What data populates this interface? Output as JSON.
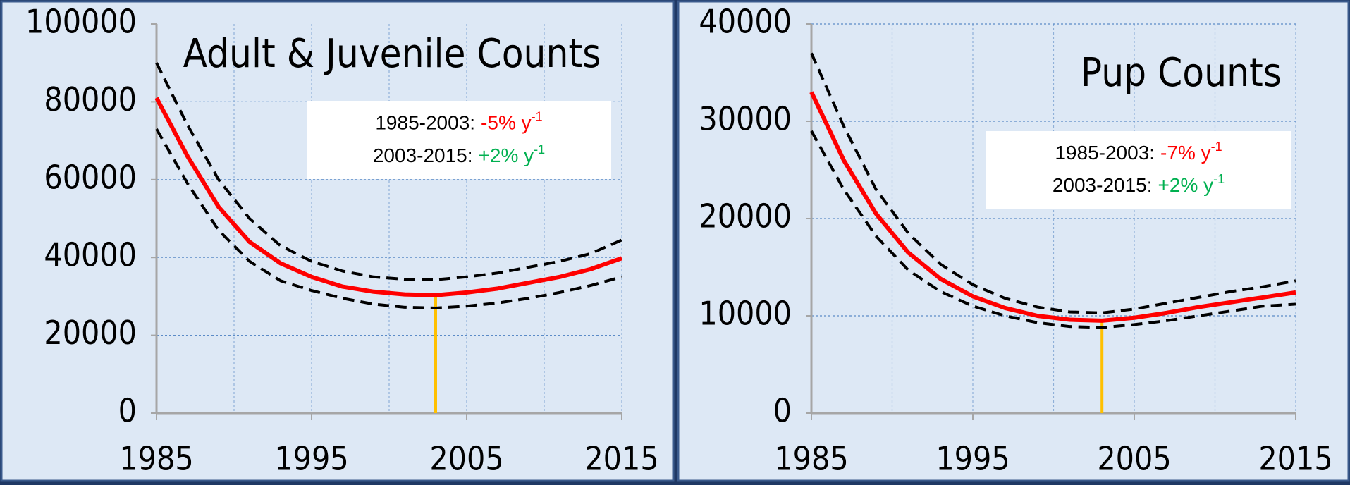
{
  "chart_data": [
    {
      "type": "line",
      "title": "Adult & Juvenile Counts",
      "x": [
        1985,
        1987,
        1989,
        1991,
        1993,
        1995,
        1997,
        1999,
        2001,
        2003,
        2005,
        2007,
        2009,
        2011,
        2013,
        2015
      ],
      "series": [
        {
          "color": "#ff0000",
          "dash": false,
          "values": [
            81000,
            66000,
            53000,
            44000,
            38500,
            35000,
            32500,
            31200,
            30500,
            30300,
            31000,
            32000,
            33500,
            35000,
            37000,
            39800
          ]
        },
        {
          "color": "#000000",
          "dash": true,
          "values": [
            90000,
            74000,
            60000,
            50000,
            43000,
            39000,
            36500,
            35000,
            34400,
            34300,
            35000,
            36000,
            37500,
            39000,
            41000,
            44500
          ]
        },
        {
          "color": "#000000",
          "dash": true,
          "values": [
            73000,
            59000,
            47000,
            39000,
            34000,
            31500,
            29500,
            28000,
            27200,
            27000,
            27500,
            28300,
            29500,
            31000,
            32800,
            35000
          ]
        }
      ],
      "vline": {
        "x": 2003,
        "y": 30300,
        "color": "#ffc000"
      },
      "xlim": [
        1985,
        2015
      ],
      "xticks": [
        1985,
        1995,
        2005,
        2015
      ],
      "xgrid": [
        1985,
        1990,
        1995,
        2000,
        2005,
        2010,
        2015
      ],
      "ylim": [
        0,
        100000
      ],
      "yticks": [
        0,
        20000,
        40000,
        60000,
        80000,
        100000
      ],
      "ygrid": [
        20000,
        40000,
        60000,
        80000
      ],
      "annotations": [
        {
          "period": "1985-2003:",
          "rate": "-5% y",
          "exponent": "-1",
          "rate_color": "#ff0000"
        },
        {
          "period": "2003-2015:",
          "rate": "+2% y",
          "exponent": "-1",
          "rate_color": "#00b050"
        }
      ]
    },
    {
      "type": "line",
      "title": "Pup Counts",
      "x": [
        1985,
        1987,
        1989,
        1991,
        1993,
        1995,
        1997,
        1999,
        2001,
        2003,
        2005,
        2007,
        2009,
        2011,
        2013,
        2015
      ],
      "series": [
        {
          "color": "#ff0000",
          "dash": false,
          "values": [
            33000,
            26000,
            20500,
            16500,
            13800,
            12000,
            10800,
            10000,
            9600,
            9500,
            9800,
            10300,
            10900,
            11400,
            11900,
            12400
          ]
        },
        {
          "color": "#000000",
          "dash": true,
          "values": [
            37000,
            29500,
            23000,
            18500,
            15300,
            13200,
            11800,
            10900,
            10400,
            10300,
            10700,
            11300,
            11900,
            12500,
            13000,
            13600
          ]
        },
        {
          "color": "#000000",
          "dash": true,
          "values": [
            29000,
            23000,
            18200,
            14700,
            12500,
            11000,
            10000,
            9300,
            8900,
            8800,
            9100,
            9500,
            10000,
            10500,
            11000,
            11200
          ]
        }
      ],
      "vline": {
        "x": 2003,
        "y": 9500,
        "color": "#ffc000"
      },
      "xlim": [
        1985,
        2015
      ],
      "xticks": [
        1985,
        1995,
        2005,
        2015
      ],
      "xgrid": [
        1985,
        1990,
        1995,
        2000,
        2005,
        2010,
        2015
      ],
      "ylim": [
        0,
        40000
      ],
      "yticks": [
        0,
        10000,
        20000,
        30000,
        40000
      ],
      "ygrid": [
        10000,
        20000,
        30000,
        40000
      ],
      "annotations": [
        {
          "period": "1985-2003:",
          "rate": "-7% y",
          "exponent": "-1",
          "rate_color": "#ff0000"
        },
        {
          "period": "2003-2015:",
          "rate": "+2% y",
          "exponent": "-1",
          "rate_color": "#00b050"
        }
      ]
    }
  ]
}
